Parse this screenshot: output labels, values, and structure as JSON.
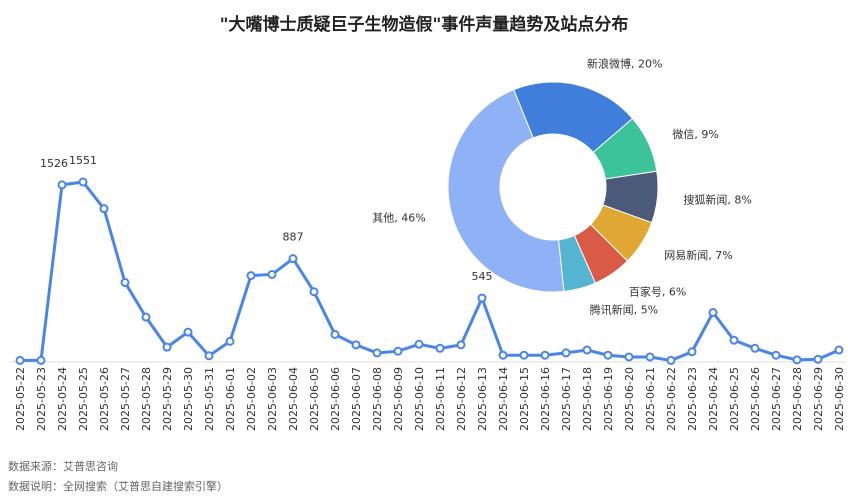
{
  "title": "\"大嘴博士质疑巨子生物造假\"事件声量趋势及站点分布",
  "footer": [
    "数据来源：艾普思咨询",
    "数据说明：全网搜索（艾普思自建搜索引擎）"
  ],
  "chart_data": [
    {
      "type": "line",
      "x": [
        "2025-05-22",
        "2025-05-23",
        "2025-05-24",
        "2025-05-25",
        "2025-05-26",
        "2025-05-27",
        "2025-05-28",
        "2025-05-29",
        "2025-05-30",
        "2025-05-31",
        "2025-06-01",
        "2025-06-02",
        "2025-06-03",
        "2025-06-04",
        "2025-06-05",
        "2025-06-06",
        "2025-06-07",
        "2025-06-08",
        "2025-06-09",
        "2025-06-10",
        "2025-06-11",
        "2025-06-12",
        "2025-06-13",
        "2025-06-14",
        "2025-06-15",
        "2025-06-16",
        "2025-06-17",
        "2025-06-18",
        "2025-06-19",
        "2025-06-20",
        "2025-06-21",
        "2025-06-22",
        "2025-06-23",
        "2025-06-24",
        "2025-06-25",
        "2025-06-26",
        "2025-06-27",
        "2025-06-28",
        "2025-06-29",
        "2025-06-30"
      ],
      "values": [
        5,
        5,
        1526,
        1551,
        1320,
        680,
        380,
        120,
        250,
        45,
        170,
        740,
        750,
        887,
        600,
        230,
        140,
        70,
        85,
        145,
        110,
        140,
        545,
        50,
        50,
        50,
        70,
        95,
        50,
        35,
        35,
        5,
        80,
        420,
        180,
        110,
        50,
        10,
        15,
        95
      ],
      "value_labels": [
        null,
        null,
        "1526",
        "1551",
        null,
        null,
        null,
        null,
        null,
        null,
        null,
        null,
        null,
        "887",
        null,
        null,
        null,
        null,
        null,
        null,
        null,
        null,
        "545",
        null,
        null,
        null,
        null,
        null,
        null,
        null,
        null,
        null,
        null,
        null,
        null,
        null,
        null,
        null,
        null,
        null
      ],
      "color": "#4a86e8"
    },
    {
      "type": "donut",
      "values": [
        20,
        9,
        8,
        7,
        6,
        5,
        46
      ],
      "value_labels": [
        "新浪微博, 20%",
        "微信, 9%",
        "搜狐新闻, 8%",
        "网易新闻, 7%",
        "百家号, 6%",
        "腾讯新闻, 5%",
        "其他, 46%"
      ],
      "colors": [
        "#3f7fdb",
        "#3cc39a",
        "#4c5a7a",
        "#e0a832",
        "#d95a45",
        "#56b4d3",
        "#8fb1f5"
      ]
    }
  ]
}
